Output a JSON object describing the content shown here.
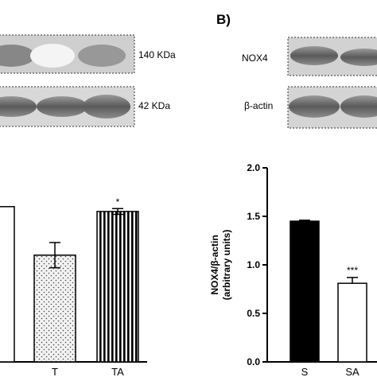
{
  "panel_b": {
    "label": "B)"
  },
  "blots": {
    "left_rows": [
      {
        "kda": "140 KDa"
      },
      {
        "kda": "42 KDa"
      }
    ],
    "right_rows": [
      {
        "label": "NOX4"
      },
      {
        "label": "β-actin"
      }
    ]
  },
  "chart_data": [
    {
      "type": "bar",
      "panel": "A",
      "categories": [
        "",
        "T",
        "TA"
      ],
      "values": [
        1.6,
        1.1,
        1.55
      ],
      "errors": [
        null,
        0.13,
        0.03
      ],
      "significance": [
        "",
        "",
        "*"
      ],
      "fills": [
        "white",
        "dotted",
        "vertical-stripes"
      ]
    },
    {
      "type": "bar",
      "panel": "B",
      "categories": [
        "S",
        "SA"
      ],
      "values": [
        1.45,
        0.81
      ],
      "errors": [
        0.01,
        0.06
      ],
      "significance": [
        "",
        "***"
      ],
      "fills": [
        "#000000",
        "#ffffff"
      ],
      "ylabel_line1": "NOX4/β-actin",
      "ylabel_line2": "(arbitrary units)",
      "ylim": [
        0,
        2.0
      ],
      "yticks": [
        "0.0",
        "0.5",
        "1.0",
        "1.5",
        "2.0"
      ]
    }
  ]
}
